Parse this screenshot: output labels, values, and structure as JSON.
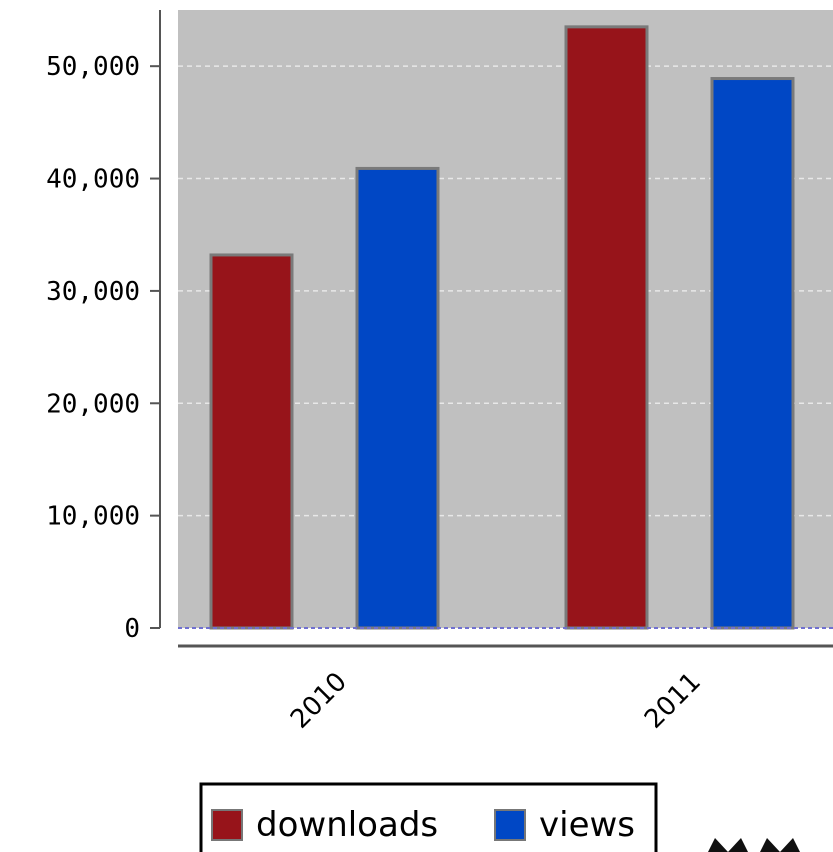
{
  "chart_data": {
    "type": "bar",
    "categories": [
      "2010",
      "2011"
    ],
    "series": [
      {
        "name": "downloads",
        "values": [
          33200,
          53500
        ],
        "color": "#97141a"
      },
      {
        "name": "views",
        "values": [
          40900,
          48900
        ],
        "color": "#0047c5"
      }
    ],
    "ylim": [
      0,
      55000
    ],
    "y_ticks": [
      0,
      10000,
      20000,
      30000,
      40000,
      50000
    ],
    "y_tick_labels": [
      "0",
      "10,000",
      "20,000",
      "30,000",
      "40,000",
      "50,000"
    ],
    "grid": true,
    "plot_background": "#c0c0c0",
    "legend_position": "bottom",
    "title": "",
    "xlabel": "",
    "ylabel": ""
  }
}
